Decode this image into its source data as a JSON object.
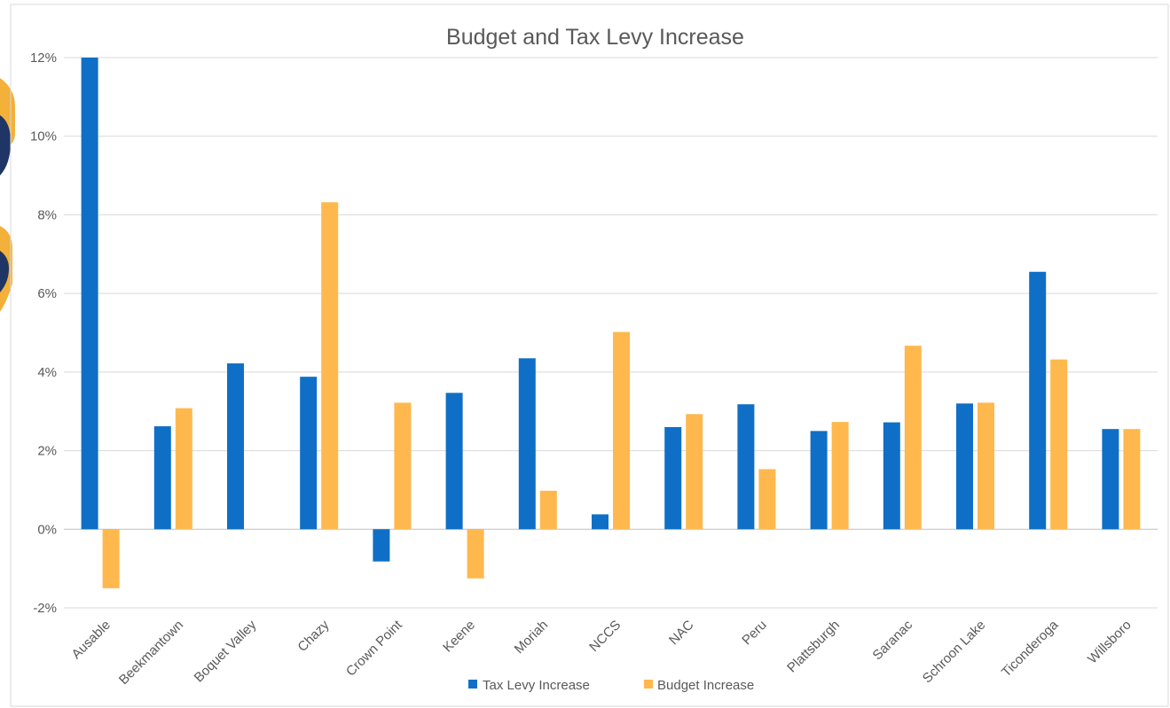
{
  "chart_data": {
    "type": "bar",
    "title": "Budget and Tax Levy Increase",
    "xlabel": "",
    "ylabel": "",
    "ylim": [
      -2,
      12
    ],
    "yticks": [
      -2,
      0,
      2,
      4,
      6,
      8,
      10,
      12
    ],
    "ytick_labels": [
      "-2%",
      "0%",
      "2%",
      "4%",
      "6%",
      "8%",
      "10%",
      "12%"
    ],
    "grid": true,
    "legend_position": "bottom",
    "categories": [
      "Ausable",
      "Beekmantown",
      "Boquet Valley",
      "Chazy",
      "Crown Point",
      "Keene",
      "Moriah",
      "NCCS",
      "NAC",
      "Peru",
      "Plattsburgh",
      "Saranac",
      "Schroon Lake",
      "Ticonderoga",
      "Willsboro"
    ],
    "series": [
      {
        "name": "Tax Levy Increase",
        "color": "#0f6fc6",
        "values": [
          12.0,
          2.62,
          4.22,
          3.88,
          -0.82,
          3.47,
          4.35,
          0.38,
          2.6,
          3.18,
          2.5,
          2.72,
          3.2,
          6.55,
          2.55
        ]
      },
      {
        "name": "Budget Increase",
        "color": "#ffb84d",
        "values": [
          -1.5,
          3.08,
          0,
          8.32,
          3.22,
          -1.25,
          0.98,
          5.02,
          2.93,
          1.53,
          2.73,
          4.67,
          3.22,
          4.32,
          2.55
        ]
      }
    ]
  }
}
